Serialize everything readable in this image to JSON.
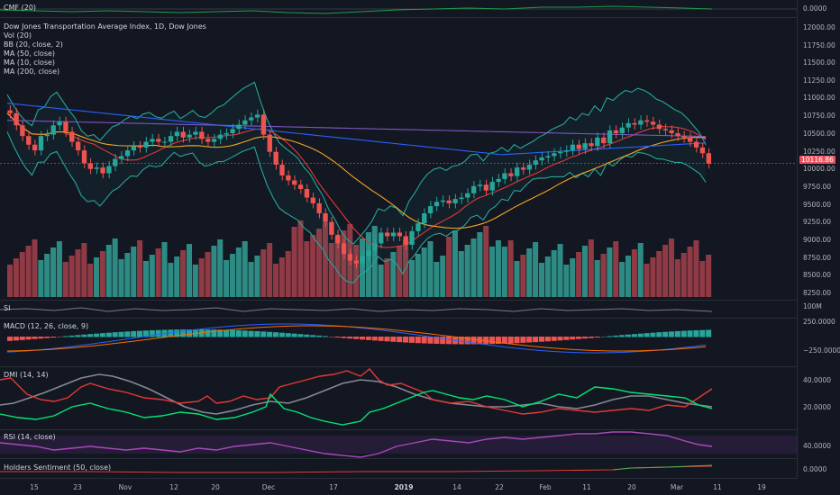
{
  "cmf": {
    "label": "CMF (20)",
    "ticks": [
      "0.0000"
    ]
  },
  "main": {
    "title": "Dow Jones Transportation Average Index, 1D, Dow Jones",
    "indicators": [
      "Vol (20)",
      "BB (20, close, 2)",
      "MA (50, close)",
      "MA (10, close)",
      "MA (200, close)"
    ],
    "ticks": [
      "12000.00",
      "11750.00",
      "11500.00",
      "11250.00",
      "11000.00",
      "10750.00",
      "10500.00",
      "10250.00",
      "10000.00",
      "9750.00",
      "9500.00",
      "9250.00",
      "9000.00",
      "8750.00",
      "8500.00",
      "8250.00"
    ],
    "price_tag": "10116.86"
  },
  "si": {
    "label": "SI",
    "ticks": [
      "100M"
    ]
  },
  "macd": {
    "label": "MACD (12, 26, close, 9)",
    "ticks": [
      "250.0000",
      "−250.0000"
    ]
  },
  "dmi": {
    "label": "DMI (14, 14)",
    "ticks": [
      "40.0000",
      "20.0000"
    ]
  },
  "rsi": {
    "label": "RSI (14, close)",
    "ticks": [
      "40.0000"
    ]
  },
  "hs": {
    "label": "Holders Sentiment (50, close)",
    "ticks": [
      "0.0000"
    ]
  },
  "time_axis": [
    "15",
    "23",
    "Nov",
    "12",
    "20",
    "Dec",
    "17",
    "2019",
    "14",
    "22",
    "Feb",
    "11",
    "20",
    "Mar",
    "11",
    "19"
  ],
  "colors": {
    "bg": "#131722",
    "up": "#26a69a",
    "down": "#ef5350",
    "vol_up": "#2e8b84",
    "vol_down": "#8f3a44",
    "bb": "#26a69a",
    "ma10": "#e53935",
    "ma50": "#f5a623",
    "ma200": "#2962ff",
    "ma_long": "#7e57c2",
    "dmi_plus": "#4caf50",
    "dmi_minus": "#e53935",
    "adx": "#9e9e9e",
    "rsi": "#9c27b0"
  }
}
